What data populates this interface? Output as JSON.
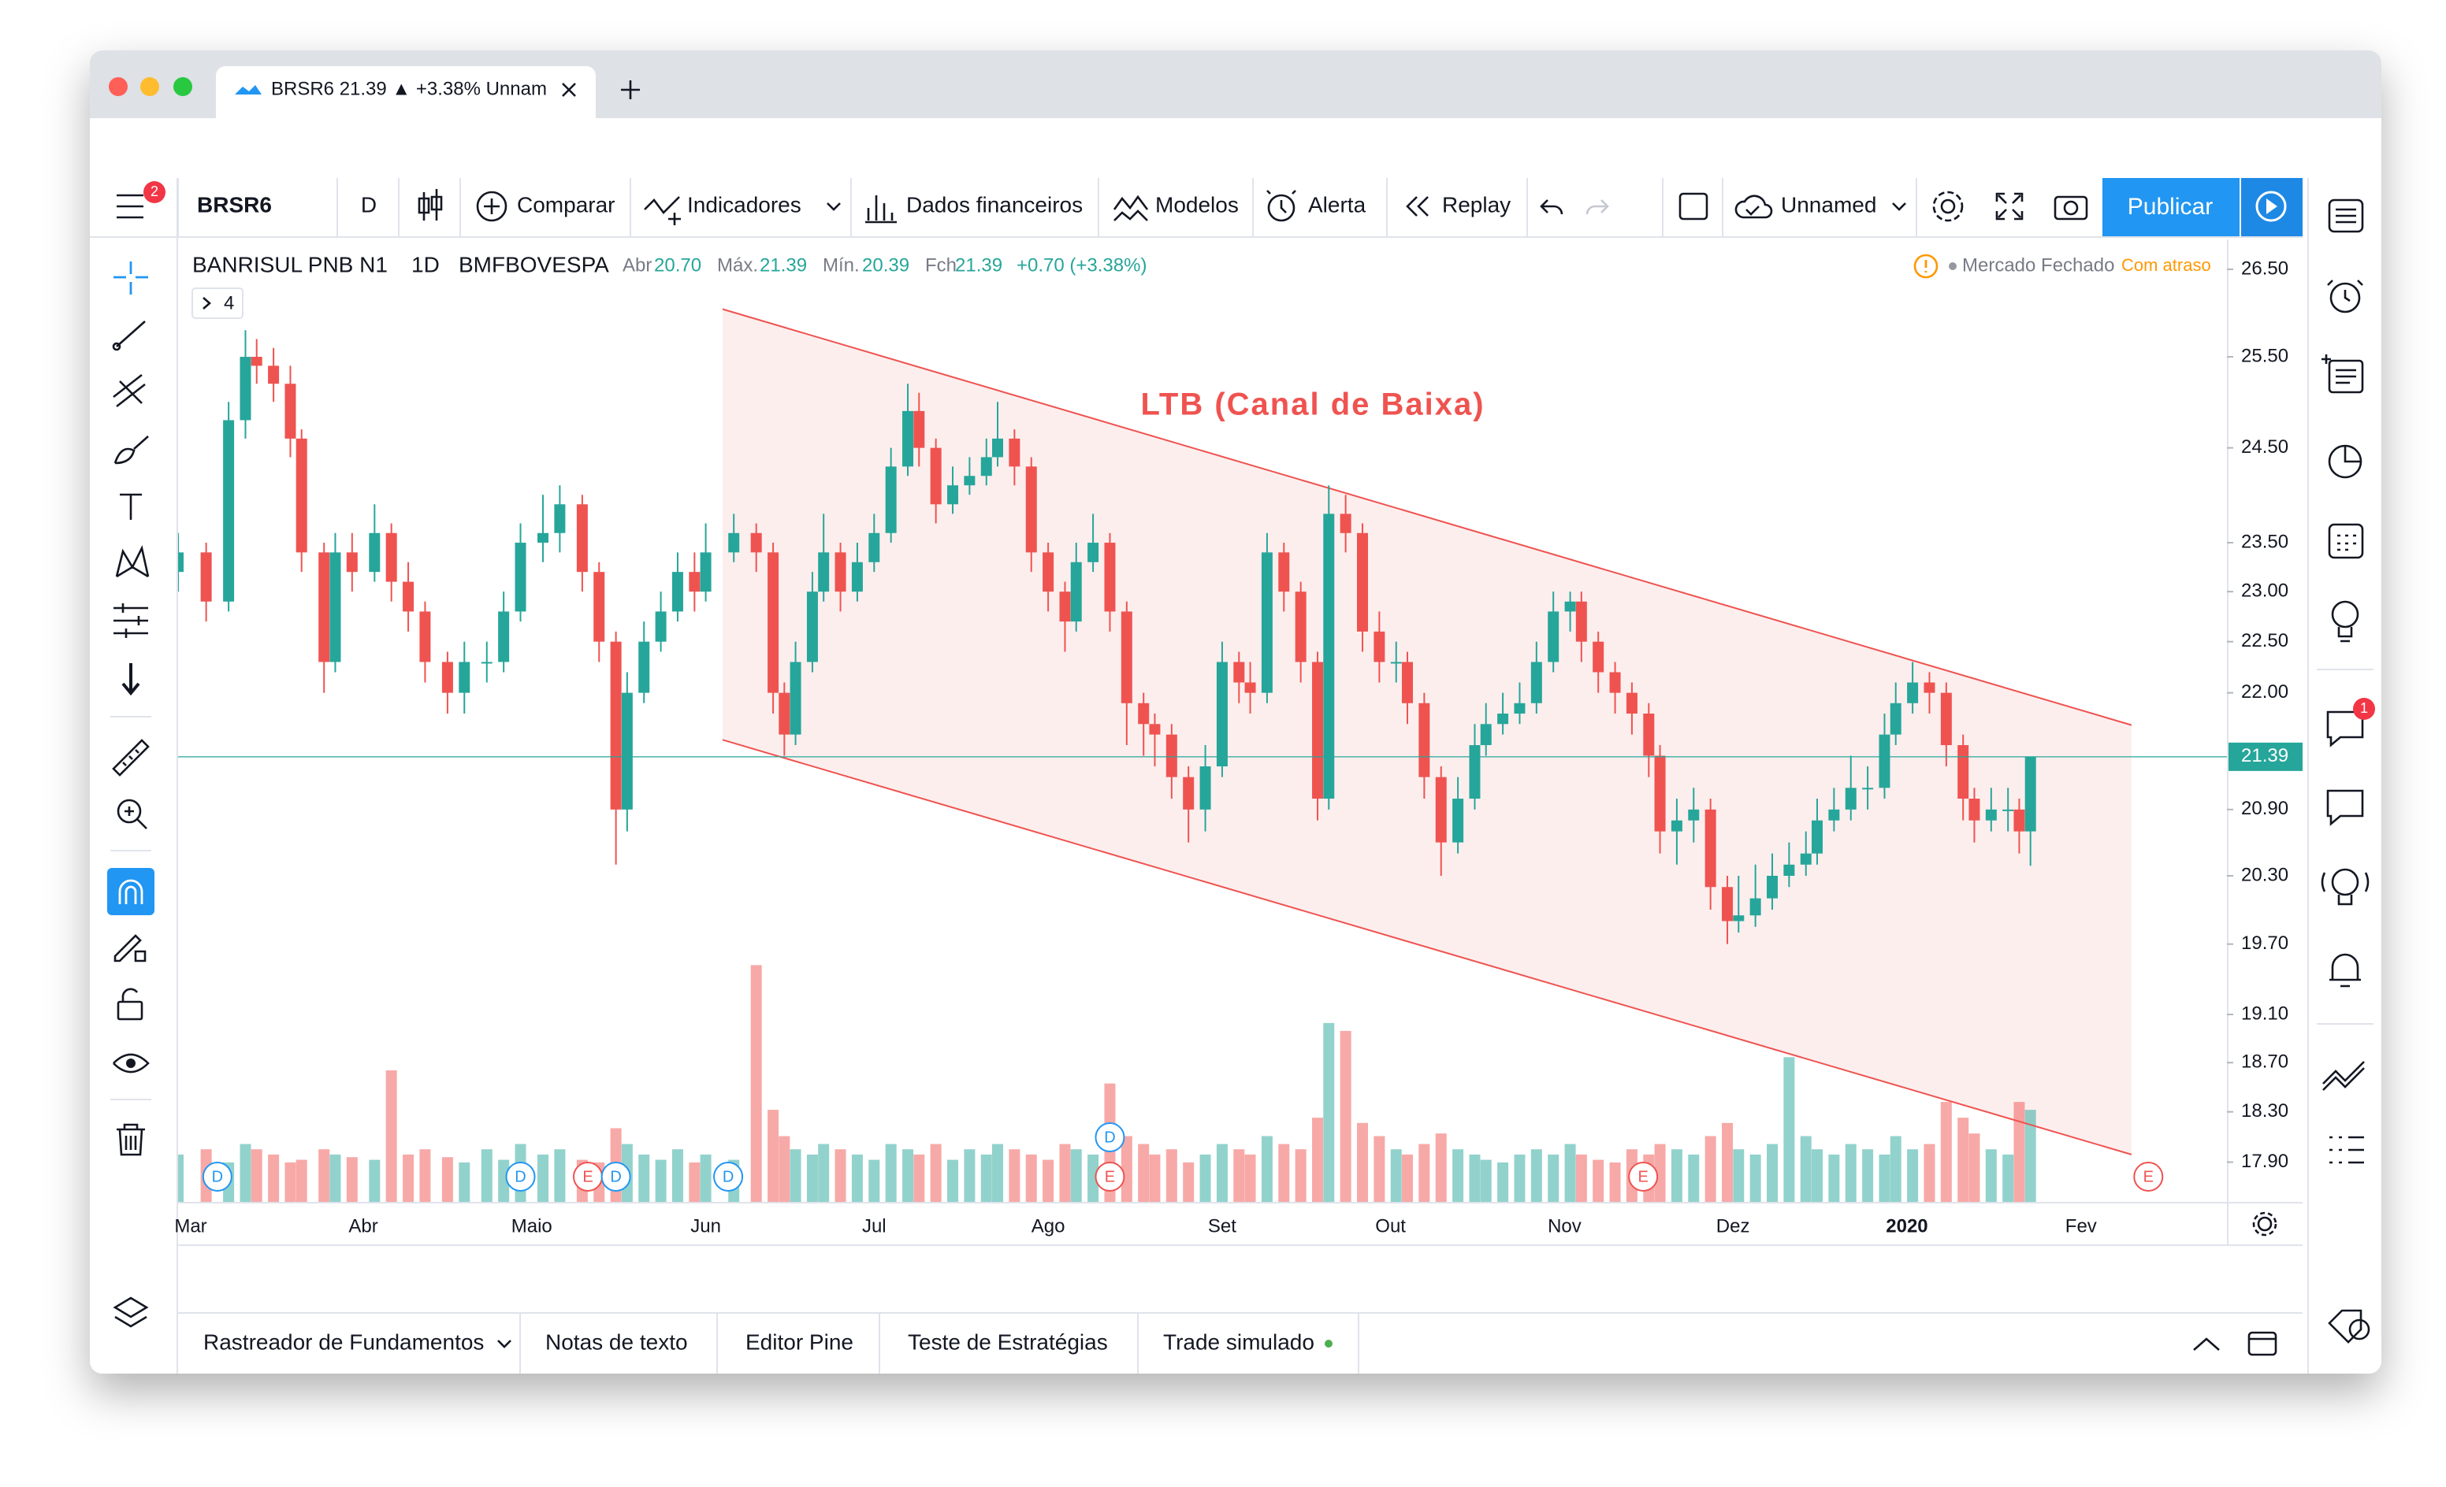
{
  "browser_tab": {
    "title": "BRSR6 21.39 ▲ +3.38% Unnam"
  },
  "toolbar": {
    "menu_badge": "2",
    "symbol": "BRSR6",
    "interval": "D",
    "buttons": [
      "Comparar",
      "Indicadores",
      "Dados financeiros",
      "Modelos",
      "Alerta",
      "Replay"
    ],
    "layout": "Unnamed",
    "publish": "Publicar"
  },
  "legend": {
    "name": "BANRISUL PNB N1",
    "interval": "1D",
    "exchange": "BMFBOVESPA",
    "open_label": "Abr",
    "open": "20.70",
    "high_label": "Máx.",
    "high": "21.39",
    "low_label": "Mín.",
    "low": "20.39",
    "close_label": "Fch",
    "close": "21.39",
    "change": "+0.70 (+3.38%)",
    "collapsed": "4"
  },
  "status": {
    "market": "Mercado Fechado",
    "delay": "Com atraso"
  },
  "sidebar_badge": "1",
  "bottom_tabs": [
    "Rastreador de Fundamentos",
    "Notas de texto",
    "Editor Pine",
    "Teste de Estratégias",
    "Trade simulado"
  ],
  "chart_data": {
    "type": "candlestick",
    "ylog": true,
    "grid": false,
    "up_color": "#26a69a",
    "down_color": "#ef5350",
    "ylim": [
      17.59,
      26.85
    ],
    "yticks": [
      {
        "value": 26.5,
        "label": "26.50"
      },
      {
        "value": 25.5,
        "label": "25.50"
      },
      {
        "value": 24.5,
        "label": "24.50"
      },
      {
        "value": 23.5,
        "label": "23.50"
      },
      {
        "value": 23,
        "label": "23.00"
      },
      {
        "value": 22.5,
        "label": "22.50"
      },
      {
        "value": 22,
        "label": "22.00"
      },
      {
        "value": 20.9,
        "label": "20.90"
      },
      {
        "value": 20.3,
        "label": "20.30"
      },
      {
        "value": 19.7,
        "label": "19.70"
      },
      {
        "value": 19.1,
        "label": "19.10"
      },
      {
        "value": 18.7,
        "label": "18.70"
      },
      {
        "value": 18.3,
        "label": "18.30"
      },
      {
        "value": 17.9,
        "label": "17.90"
      }
    ],
    "xlim": [
      -2,
      363
    ],
    "xticks": [
      {
        "value": 0,
        "label": "Mar"
      },
      {
        "value": 31,
        "label": "Abr"
      },
      {
        "value": 61,
        "label": "Maio"
      },
      {
        "value": 92,
        "label": "Jun"
      },
      {
        "value": 122,
        "label": "Jul"
      },
      {
        "value": 153,
        "label": "Ago"
      },
      {
        "value": 184,
        "label": "Set"
      },
      {
        "value": 214,
        "label": "Out"
      },
      {
        "value": 245,
        "label": "Nov"
      },
      {
        "value": 275,
        "label": "Dez"
      },
      {
        "value": 306,
        "label": "2020"
      },
      {
        "value": 337,
        "label": "Fev"
      }
    ],
    "last_price": {
      "value": 21.39,
      "label": "21.39"
    },
    "annotation": "LTB (Canal de Baixa)",
    "channel": {
      "color": "#ef5350",
      "fill": "#fdeeee",
      "upper": [
        [
          95,
          26.04
        ],
        [
          346,
          21.69
        ]
      ],
      "lower": [
        [
          95,
          21.55
        ],
        [
          346,
          17.96
        ]
      ]
    },
    "events": [
      {
        "x": 5,
        "label": "D"
      },
      {
        "x": 59,
        "label": "D"
      },
      {
        "x": 71,
        "label": "E"
      },
      {
        "x": 76,
        "label": "D"
      },
      {
        "x": 96,
        "label": "D"
      },
      {
        "x": 164,
        "label": "E"
      },
      {
        "x": 164,
        "label": "D"
      },
      {
        "x": 259,
        "label": "E"
      },
      {
        "x": 349,
        "label": "E"
      }
    ],
    "vlim": [
      0,
      100
    ],
    "x": [
      -2,
      3,
      7,
      10,
      12,
      15,
      18,
      20,
      24,
      26,
      29,
      33,
      36,
      39,
      42,
      46,
      49,
      53,
      56,
      59,
      63,
      66,
      70,
      73,
      76,
      78,
      81,
      84,
      87,
      90,
      92,
      97,
      101,
      104,
      106,
      108,
      111,
      113,
      116,
      119,
      122,
      125,
      128,
      130,
      133,
      136,
      139,
      142,
      144,
      147,
      150,
      153,
      156,
      158,
      161,
      164,
      167,
      170,
      172,
      175,
      178,
      181,
      184,
      187,
      189,
      192,
      195,
      198,
      201,
      203,
      206,
      209,
      212,
      215,
      217,
      220,
      223,
      226,
      229,
      231,
      234,
      237,
      240,
      243,
      246,
      248,
      251,
      254,
      257,
      260,
      262,
      265,
      268,
      271,
      274,
      276,
      279,
      282,
      285,
      288,
      290,
      293,
      296,
      299,
      302,
      304,
      307,
      310,
      313,
      316,
      318,
      321,
      324,
      326,
      328
    ],
    "ohlc": [
      [
        23.2,
        23.6,
        23.0,
        23.4
      ],
      [
        23.4,
        23.5,
        22.7,
        22.9
      ],
      [
        22.9,
        25.0,
        22.8,
        24.8
      ],
      [
        24.8,
        25.8,
        24.6,
        25.5
      ],
      [
        25.5,
        25.7,
        25.2,
        25.4
      ],
      [
        25.4,
        25.6,
        25.0,
        25.2
      ],
      [
        25.2,
        25.4,
        24.4,
        24.6
      ],
      [
        24.6,
        24.7,
        23.2,
        23.4
      ],
      [
        23.4,
        23.5,
        22.0,
        22.3
      ],
      [
        22.3,
        23.6,
        22.2,
        23.4
      ],
      [
        23.4,
        23.6,
        23.0,
        23.2
      ],
      [
        23.2,
        23.9,
        23.1,
        23.6
      ],
      [
        23.6,
        23.7,
        22.9,
        23.1
      ],
      [
        23.1,
        23.3,
        22.6,
        22.8
      ],
      [
        22.8,
        22.9,
        22.1,
        22.3
      ],
      [
        22.3,
        22.4,
        21.8,
        22.0
      ],
      [
        22.0,
        22.5,
        21.8,
        22.3
      ],
      [
        22.3,
        22.5,
        22.1,
        22.3
      ],
      [
        22.3,
        23.0,
        22.2,
        22.8
      ],
      [
        22.8,
        23.7,
        22.7,
        23.5
      ],
      [
        23.5,
        24.0,
        23.3,
        23.6
      ],
      [
        23.6,
        24.1,
        23.4,
        23.9
      ],
      [
        23.9,
        24.0,
        23.0,
        23.2
      ],
      [
        23.2,
        23.3,
        22.3,
        22.5
      ],
      [
        22.5,
        22.6,
        20.4,
        20.9
      ],
      [
        20.9,
        22.2,
        20.7,
        22.0
      ],
      [
        22.0,
        22.7,
        21.9,
        22.5
      ],
      [
        22.5,
        23.0,
        22.4,
        22.8
      ],
      [
        22.8,
        23.4,
        22.7,
        23.2
      ],
      [
        23.2,
        23.4,
        22.8,
        23.0
      ],
      [
        23.0,
        23.7,
        22.9,
        23.4
      ],
      [
        23.4,
        23.8,
        23.3,
        23.6
      ],
      [
        23.6,
        23.7,
        23.2,
        23.4
      ],
      [
        23.4,
        23.5,
        21.8,
        22.0
      ],
      [
        22.0,
        22.1,
        21.4,
        21.6
      ],
      [
        21.6,
        22.5,
        21.5,
        22.3
      ],
      [
        22.3,
        23.2,
        22.2,
        23.0
      ],
      [
        23.0,
        23.8,
        22.9,
        23.4
      ],
      [
        23.4,
        23.5,
        22.8,
        23.0
      ],
      [
        23.0,
        23.5,
        22.9,
        23.3
      ],
      [
        23.3,
        23.8,
        23.2,
        23.6
      ],
      [
        23.6,
        24.5,
        23.5,
        24.3
      ],
      [
        24.3,
        25.2,
        24.2,
        24.9
      ],
      [
        24.9,
        25.1,
        24.3,
        24.5
      ],
      [
        24.5,
        24.6,
        23.7,
        23.9
      ],
      [
        23.9,
        24.3,
        23.8,
        24.1
      ],
      [
        24.1,
        24.4,
        24.0,
        24.2
      ],
      [
        24.2,
        24.6,
        24.1,
        24.4
      ],
      [
        24.4,
        25.0,
        24.3,
        24.6
      ],
      [
        24.6,
        24.7,
        24.1,
        24.3
      ],
      [
        24.3,
        24.4,
        23.2,
        23.4
      ],
      [
        23.4,
        23.5,
        22.8,
        23.0
      ],
      [
        23.0,
        23.1,
        22.4,
        22.7
      ],
      [
        22.7,
        23.5,
        22.6,
        23.3
      ],
      [
        23.3,
        23.8,
        23.2,
        23.5
      ],
      [
        23.5,
        23.6,
        22.6,
        22.8
      ],
      [
        22.8,
        22.9,
        21.5,
        21.9
      ],
      [
        21.9,
        22.0,
        21.4,
        21.7
      ],
      [
        21.7,
        21.8,
        21.3,
        21.6
      ],
      [
        21.6,
        21.7,
        21.0,
        21.2
      ],
      [
        21.2,
        21.3,
        20.6,
        20.9
      ],
      [
        20.9,
        21.5,
        20.7,
        21.3
      ],
      [
        21.3,
        22.5,
        21.2,
        22.3
      ],
      [
        22.3,
        22.4,
        21.9,
        22.1
      ],
      [
        22.1,
        22.3,
        21.8,
        22.0
      ],
      [
        22.0,
        23.6,
        21.9,
        23.4
      ],
      [
        23.4,
        23.5,
        22.8,
        23.0
      ],
      [
        23.0,
        23.1,
        22.1,
        22.3
      ],
      [
        22.3,
        22.4,
        20.8,
        21.0
      ],
      [
        21.0,
        24.1,
        20.9,
        23.8
      ],
      [
        23.8,
        24.0,
        23.4,
        23.6
      ],
      [
        23.6,
        23.7,
        22.4,
        22.6
      ],
      [
        22.6,
        22.8,
        22.1,
        22.3
      ],
      [
        22.3,
        22.5,
        22.1,
        22.3
      ],
      [
        22.3,
        22.4,
        21.7,
        21.9
      ],
      [
        21.9,
        22.0,
        21.0,
        21.2
      ],
      [
        21.2,
        21.3,
        20.3,
        20.6
      ],
      [
        20.6,
        21.2,
        20.5,
        21.0
      ],
      [
        21.0,
        21.7,
        20.9,
        21.5
      ],
      [
        21.5,
        21.9,
        21.4,
        21.7
      ],
      [
        21.7,
        22.0,
        21.6,
        21.8
      ],
      [
        21.8,
        22.1,
        21.7,
        21.9
      ],
      [
        21.9,
        22.5,
        21.8,
        22.3
      ],
      [
        22.3,
        23.0,
        22.2,
        22.8
      ],
      [
        22.8,
        23.0,
        22.6,
        22.9
      ],
      [
        22.9,
        23.0,
        22.3,
        22.5
      ],
      [
        22.5,
        22.6,
        22.0,
        22.2
      ],
      [
        22.2,
        22.3,
        21.8,
        22.0
      ],
      [
        22.0,
        22.1,
        21.6,
        21.8
      ],
      [
        21.8,
        21.9,
        21.2,
        21.4
      ],
      [
        21.4,
        21.5,
        20.5,
        20.7
      ],
      [
        20.7,
        21.0,
        20.4,
        20.8
      ],
      [
        20.8,
        21.1,
        20.6,
        20.9
      ],
      [
        20.9,
        21.0,
        20.0,
        20.2
      ],
      [
        20.2,
        20.3,
        19.7,
        19.9
      ],
      [
        19.9,
        20.3,
        19.8,
        19.95
      ],
      [
        19.95,
        20.4,
        19.85,
        20.1
      ],
      [
        20.1,
        20.5,
        20.0,
        20.3
      ],
      [
        20.3,
        20.6,
        20.2,
        20.4
      ],
      [
        20.4,
        20.7,
        20.3,
        20.5
      ],
      [
        20.5,
        21.0,
        20.4,
        20.8
      ],
      [
        20.8,
        21.1,
        20.7,
        20.9
      ],
      [
        20.9,
        21.4,
        20.8,
        21.1
      ],
      [
        21.1,
        21.3,
        20.9,
        21.1
      ],
      [
        21.1,
        21.8,
        21.0,
        21.6
      ],
      [
        21.6,
        22.1,
        21.5,
        21.9
      ],
      [
        21.9,
        22.3,
        21.8,
        22.1
      ],
      [
        22.1,
        22.2,
        21.8,
        22.0
      ],
      [
        22.0,
        22.1,
        21.3,
        21.5
      ],
      [
        21.5,
        21.6,
        20.8,
        21.0
      ],
      [
        21.0,
        21.1,
        20.6,
        20.8
      ],
      [
        20.8,
        21.1,
        20.7,
        20.9
      ],
      [
        20.9,
        21.1,
        20.7,
        20.9
      ],
      [
        20.9,
        21.0,
        20.5,
        20.7
      ],
      [
        20.7,
        21.39,
        20.39,
        21.39
      ]
    ],
    "volume": [
      18,
      20,
      15,
      22,
      20,
      18,
      15,
      16,
      20,
      18,
      17,
      16,
      50,
      18,
      20,
      17,
      15,
      20,
      16,
      22,
      18,
      20,
      16,
      15,
      28,
      22,
      18,
      16,
      20,
      15,
      18,
      16,
      90,
      35,
      25,
      20,
      18,
      22,
      20,
      18,
      16,
      22,
      20,
      18,
      22,
      16,
      20,
      18,
      22,
      20,
      18,
      16,
      22,
      20,
      18,
      45,
      25,
      22,
      18,
      20,
      15,
      18,
      22,
      20,
      18,
      25,
      22,
      20,
      32,
      68,
      65,
      30,
      25,
      20,
      18,
      22,
      26,
      20,
      18,
      16,
      15,
      18,
      20,
      18,
      22,
      18,
      16,
      15,
      20,
      18,
      22,
      20,
      18,
      25,
      30,
      20,
      18,
      22,
      55,
      25,
      20,
      18,
      22,
      20,
      18,
      25,
      20,
      22,
      38,
      32,
      26,
      20,
      18,
      38,
      35
    ]
  }
}
